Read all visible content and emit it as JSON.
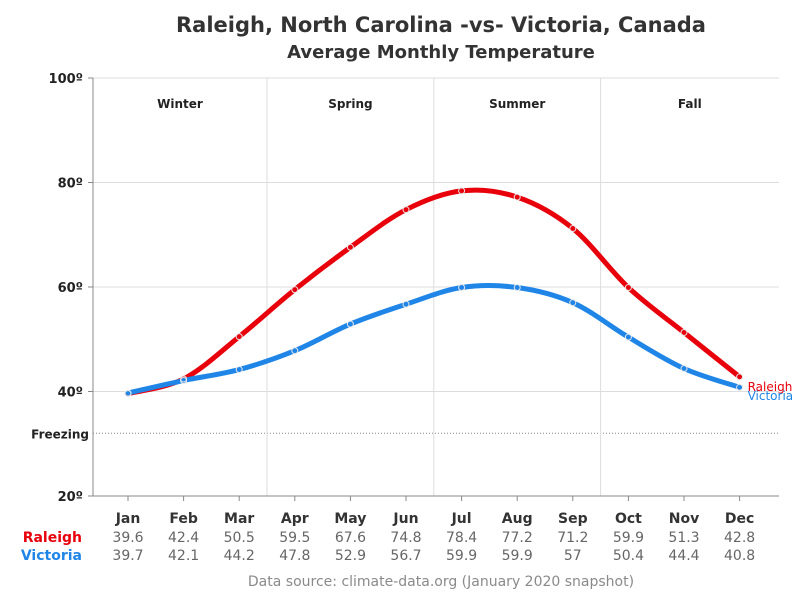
{
  "chart_data": {
    "type": "line",
    "title": "Raleigh, North Carolina -vs- Victoria, Canada",
    "subtitle": "Average Monthly Temperature",
    "categories": [
      "Jan",
      "Feb",
      "Mar",
      "Apr",
      "May",
      "Jun",
      "Jul",
      "Aug",
      "Sep",
      "Oct",
      "Nov",
      "Dec"
    ],
    "series": [
      {
        "name": "Raleigh",
        "color": "#e8000b",
        "values": [
          39.6,
          42.4,
          50.5,
          59.5,
          67.6,
          74.8,
          78.4,
          77.2,
          71.2,
          59.9,
          51.3,
          42.8
        ],
        "display_values": [
          "39.6",
          "42.4",
          "50.5",
          "59.5",
          "67.6",
          "74.8",
          "78.4",
          "77.2",
          "71.2",
          "59.9",
          "51.3",
          "42.8"
        ]
      },
      {
        "name": "Victoria",
        "color": "#1f86e8",
        "values": [
          39.7,
          42.1,
          44.2,
          47.8,
          52.9,
          56.7,
          59.9,
          59.9,
          57,
          50.4,
          44.4,
          40.8
        ],
        "display_values": [
          "39.7",
          "42.1",
          "44.2",
          "47.8",
          "52.9",
          "56.7",
          "59.9",
          "59.9",
          "57",
          "50.4",
          "44.4",
          "40.8"
        ]
      }
    ],
    "ylim": [
      20,
      100
    ],
    "yticks": [
      20,
      40,
      60,
      80,
      100
    ],
    "ytick_labels": [
      "20º",
      "40º",
      "60º",
      "80º",
      "100º"
    ],
    "reference_line": {
      "value": 32,
      "label": "Freezing"
    },
    "seasons": [
      {
        "label": "Winter",
        "start_month": 0,
        "end_month": 2
      },
      {
        "label": "Spring",
        "start_month": 3,
        "end_month": 5
      },
      {
        "label": "Summer",
        "start_month": 6,
        "end_month": 8
      },
      {
        "label": "Fall",
        "start_month": 9,
        "end_month": 11
      }
    ],
    "grid": true,
    "source": "Data source: climate-data.org (January 2020 snapshot)"
  }
}
